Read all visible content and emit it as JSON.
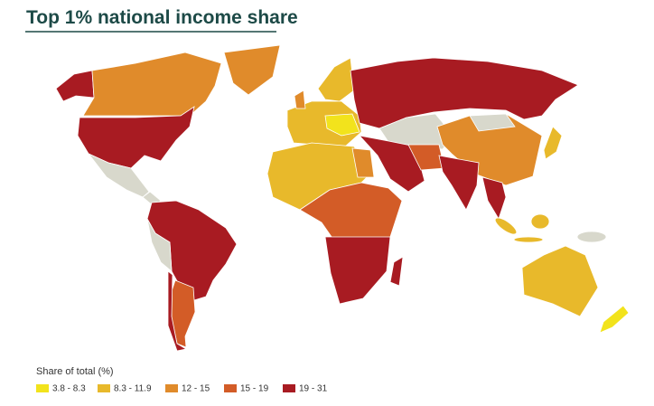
{
  "title": "Top 1% national income share",
  "legend": {
    "title": "Share of total (%)",
    "items": [
      {
        "label": "3.8 - 8.3",
        "color": "#f2e31c"
      },
      {
        "label": "8.3 - 11.9",
        "color": "#e8b92b"
      },
      {
        "label": "12 - 15",
        "color": "#e08b2b"
      },
      {
        "label": "15 - 19",
        "color": "#d35c27"
      },
      {
        "label": "19 - 31",
        "color": "#a81b22"
      }
    ]
  }
}
